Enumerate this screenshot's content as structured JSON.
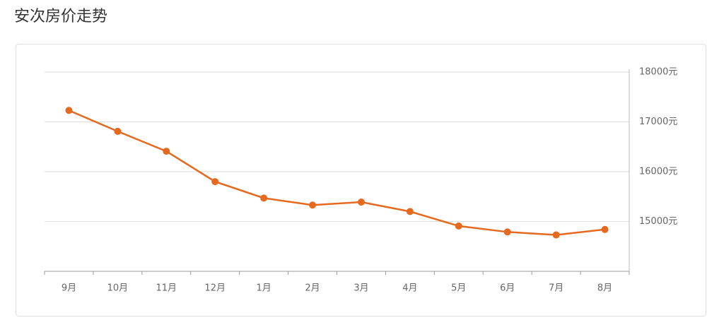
{
  "chart_data": {
    "type": "line",
    "title": "安次房价走势",
    "categories": [
      "9月",
      "10月",
      "11月",
      "12月",
      "1月",
      "2月",
      "3月",
      "4月",
      "5月",
      "6月",
      "7月",
      "8月"
    ],
    "series": [
      {
        "color": "#e5691f",
        "values": [
          17230,
          16810,
          16410,
          15800,
          15470,
          15330,
          15390,
          15200,
          14910,
          14790,
          14730,
          14840
        ]
      }
    ],
    "ylim": [
      14000,
      18000
    ],
    "yticks": [
      {
        "value": 15000,
        "label": "15000元"
      },
      {
        "value": 16000,
        "label": "16000元"
      },
      {
        "value": 17000,
        "label": "17000元"
      },
      {
        "value": 18000,
        "label": "18000元"
      }
    ],
    "grid": true
  }
}
